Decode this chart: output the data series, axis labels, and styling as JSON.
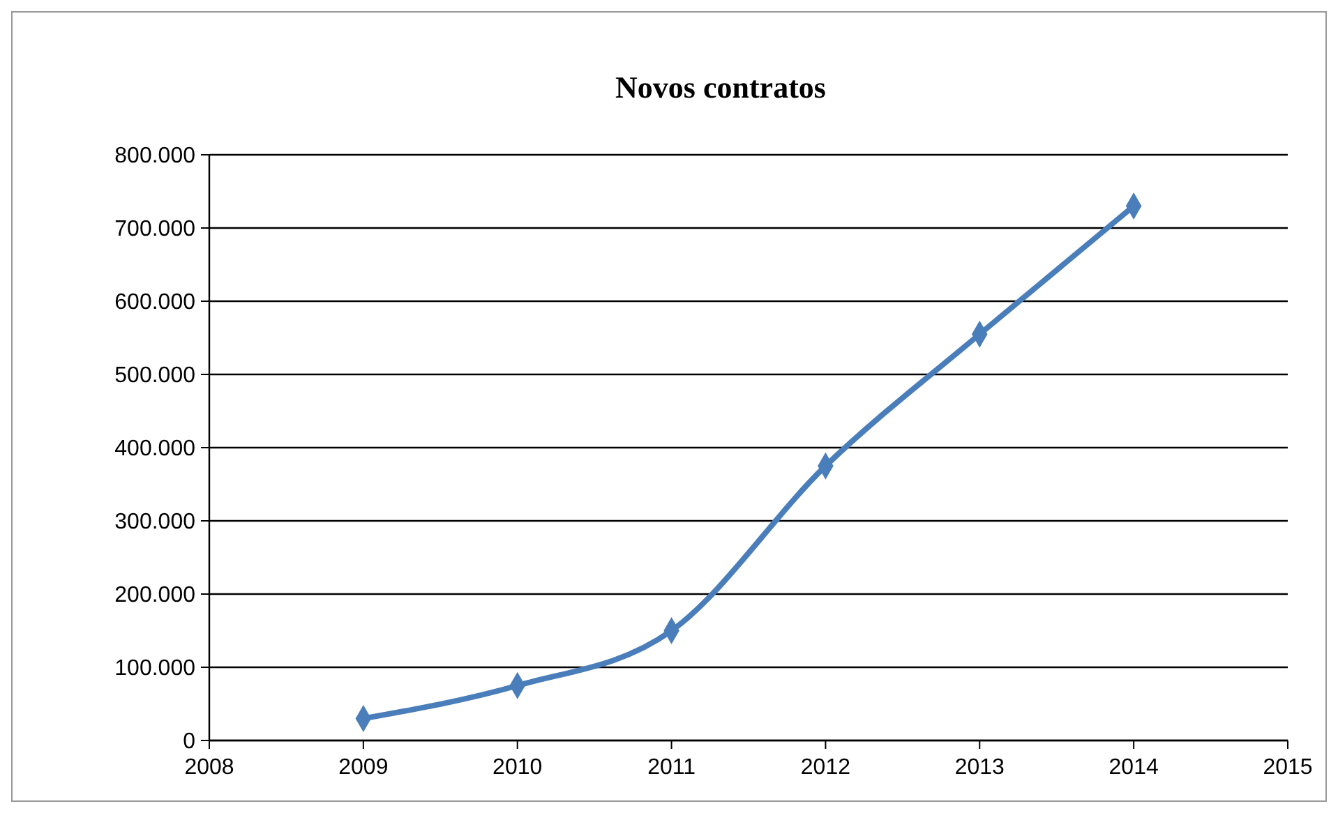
{
  "chart_data": {
    "type": "line",
    "title": "Novos contratos",
    "x": [
      2009,
      2010,
      2011,
      2012,
      2013,
      2014
    ],
    "series": [
      {
        "color": "#4a7ebb",
        "values": [
          30000,
          75000,
          150000,
          375000,
          555000,
          730000
        ]
      }
    ],
    "xlim": [
      2008,
      2015
    ],
    "xticks": [
      2008,
      2009,
      2010,
      2011,
      2012,
      2013,
      2014,
      2015
    ],
    "ylim": [
      0,
      800000
    ],
    "yticks": [
      {
        "value": 0,
        "label": "0"
      },
      {
        "value": 100000,
        "label": "100.000"
      },
      {
        "value": 200000,
        "label": "200.000"
      },
      {
        "value": 300000,
        "label": "300.000"
      },
      {
        "value": 400000,
        "label": "400.000"
      },
      {
        "value": 500000,
        "label": "500.000"
      },
      {
        "value": 600000,
        "label": "600.000"
      },
      {
        "value": 700000,
        "label": "700.000"
      },
      {
        "value": 800000,
        "label": "800.000"
      }
    ],
    "grid": "y",
    "marker": "diamond",
    "line_style": "solid"
  }
}
